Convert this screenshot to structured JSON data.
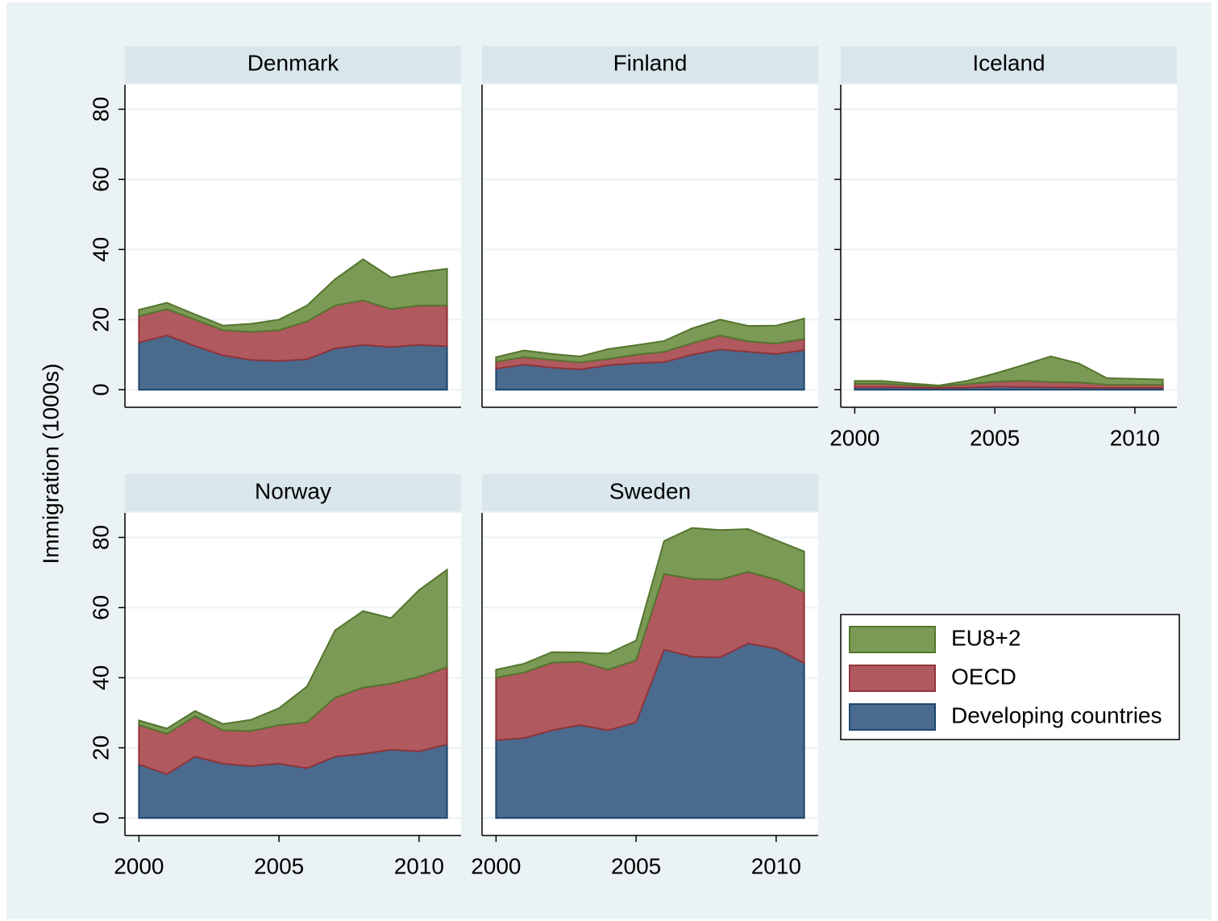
{
  "ylabel": "Immigration (1000s)",
  "chart_data": [
    {
      "type": "area",
      "title": "Denmark",
      "x": [
        2000,
        2001,
        2002,
        2003,
        2004,
        2005,
        2006,
        2007,
        2008,
        2009,
        2010,
        2011
      ],
      "xlim": [
        1999.5,
        2011.5
      ],
      "ylim": [
        -5,
        87
      ],
      "yticks": [
        0,
        20,
        40,
        60,
        80
      ],
      "grid": true,
      "series": [
        {
          "name": "EU8+2",
          "color": "#7a9a55",
          "values": [
            1.8,
            1.8,
            1.5,
            1.3,
            2.3,
            3,
            4.5,
            7.5,
            11.7,
            9,
            9.5,
            10.5
          ]
        },
        {
          "name": "OECD",
          "color": "#b0595e",
          "values": [
            7.5,
            7.5,
            7.5,
            7.2,
            8,
            8.8,
            10.8,
            12.2,
            12.7,
            10.8,
            11.2,
            11.6
          ]
        },
        {
          "name": "Developing countries",
          "color": "#4a6b8e",
          "values": [
            13.5,
            15.5,
            12.5,
            9.8,
            8.5,
            8.2,
            8.7,
            11.8,
            12.8,
            12.2,
            12.8,
            12.4
          ]
        }
      ]
    },
    {
      "type": "area",
      "title": "Finland",
      "x": [
        2000,
        2001,
        2002,
        2003,
        2004,
        2005,
        2006,
        2007,
        2008,
        2009,
        2010,
        2011
      ],
      "xlim": [
        1999.5,
        2011.5
      ],
      "ylim": [
        -5,
        87
      ],
      "yticks": [
        0,
        20,
        40,
        60,
        80
      ],
      "grid": true,
      "series": [
        {
          "name": "EU8+2",
          "color": "#7a9a55",
          "values": [
            1.3,
            1.9,
            1.7,
            1.7,
            2.8,
            2.7,
            3.1,
            4.2,
            4.5,
            4.4,
            5.1,
            5.8
          ]
        },
        {
          "name": "OECD",
          "color": "#b0595e",
          "values": [
            2,
            2.1,
            2.2,
            2,
            1.8,
            2.4,
            2.9,
            3.3,
            4,
            3,
            3,
            3.2
          ]
        },
        {
          "name": "Developing countries",
          "color": "#4a6b8e",
          "values": [
            6,
            7.2,
            6.3,
            5.8,
            7,
            7.6,
            7.9,
            10,
            11.5,
            10.8,
            10.2,
            11.3
          ]
        }
      ]
    },
    {
      "type": "area",
      "title": "Iceland",
      "x": [
        2000,
        2001,
        2002,
        2003,
        2004,
        2005,
        2006,
        2007,
        2008,
        2009,
        2010,
        2011
      ],
      "xlim": [
        1999.5,
        2011.5
      ],
      "ylim": [
        -5,
        87
      ],
      "yticks": [
        0,
        20,
        40,
        60,
        80
      ],
      "xticks": [
        2000,
        2005,
        2010
      ],
      "grid": true,
      "series": [
        {
          "name": "EU8+2",
          "color": "#7a9a55",
          "values": [
            0.8,
            0.8,
            0.5,
            0.2,
            0.9,
            2.3,
            4.4,
            7.3,
            5.4,
            1.9,
            1.7,
            1.5
          ]
        },
        {
          "name": "OECD",
          "color": "#b0595e",
          "values": [
            1,
            1,
            0.7,
            0.5,
            1,
            1.4,
            1.8,
            1.5,
            1.5,
            0.9,
            0.9,
            0.9
          ]
        },
        {
          "name": "Developing countries",
          "color": "#4a6b8e",
          "values": [
            0.7,
            0.7,
            0.6,
            0.5,
            0.6,
            0.9,
            0.8,
            0.7,
            0.6,
            0.5,
            0.5,
            0.5
          ]
        }
      ]
    },
    {
      "type": "area",
      "title": "Norway",
      "x": [
        2000,
        2001,
        2002,
        2003,
        2004,
        2005,
        2006,
        2007,
        2008,
        2009,
        2010,
        2011
      ],
      "xlim": [
        1999.5,
        2011.5
      ],
      "ylim": [
        -5,
        87
      ],
      "yticks": [
        0,
        20,
        40,
        60,
        80
      ],
      "xticks": [
        2000,
        2005,
        2010
      ],
      "grid": true,
      "series": [
        {
          "name": "EU8+2",
          "color": "#7a9a55",
          "values": [
            1.3,
            1.5,
            1.5,
            1.8,
            3.2,
            4.8,
            10.2,
            19.2,
            21.8,
            18.7,
            24.7,
            27.8
          ]
        },
        {
          "name": "OECD",
          "color": "#b0595e",
          "values": [
            11.2,
            11.5,
            11.5,
            9.5,
            10,
            11,
            13.1,
            16.8,
            18.9,
            18.8,
            21.3,
            22
          ]
        },
        {
          "name": "Developing countries",
          "color": "#4a6b8e",
          "values": [
            15.3,
            12.5,
            17.5,
            15.5,
            14.8,
            15.5,
            14.2,
            17.5,
            18.3,
            19.5,
            19,
            21
          ]
        }
      ]
    },
    {
      "type": "area",
      "title": "Sweden",
      "x": [
        2000,
        2001,
        2002,
        2003,
        2004,
        2005,
        2006,
        2007,
        2008,
        2009,
        2010,
        2011
      ],
      "xlim": [
        1999.5,
        2011.5
      ],
      "ylim": [
        -5,
        87
      ],
      "yticks": [
        0,
        20,
        40,
        60,
        80
      ],
      "xticks": [
        2000,
        2005,
        2010
      ],
      "grid": true,
      "series": [
        {
          "name": "EU8+2",
          "color": "#7a9a55",
          "values": [
            2.3,
            2.5,
            3,
            2.6,
            4.6,
            5.6,
            9.4,
            14.5,
            14.1,
            12.2,
            11.2,
            11.5
          ]
        },
        {
          "name": "OECD",
          "color": "#b0595e",
          "values": [
            17.8,
            18.7,
            19.3,
            18.1,
            17.3,
            17.7,
            21.6,
            22.2,
            22.2,
            20.4,
            19.7,
            20.3
          ]
        },
        {
          "name": "Developing countries",
          "color": "#4a6b8e",
          "values": [
            22.2,
            22.8,
            25,
            26.5,
            25,
            27.3,
            48,
            46,
            45.8,
            49.8,
            48.3,
            44.2
          ]
        }
      ]
    }
  ]
}
